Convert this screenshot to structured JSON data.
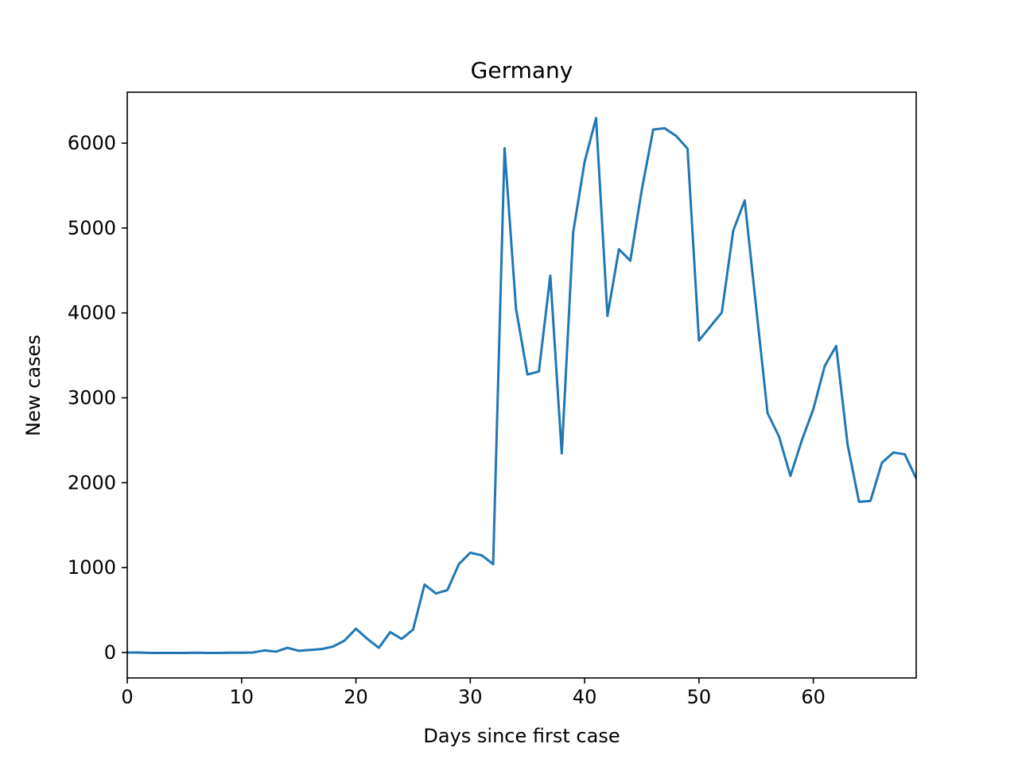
{
  "chart_data": {
    "type": "line",
    "title": "Germany",
    "xlabel": "Days since first case",
    "ylabel": "New cases",
    "xlim": [
      0,
      69
    ],
    "ylim": [
      -300,
      6600
    ],
    "xticks": [
      0,
      10,
      20,
      30,
      40,
      50,
      60
    ],
    "yticks": [
      0,
      1000,
      2000,
      3000,
      4000,
      5000,
      6000
    ],
    "grid": false,
    "line_color": "#1f77b4",
    "series": [
      {
        "x": [
          0,
          1,
          2,
          3,
          4,
          5,
          6,
          7,
          8,
          9,
          10,
          11,
          12,
          13,
          14,
          15,
          16,
          17,
          18,
          19,
          20,
          21,
          22,
          23,
          24,
          25,
          26,
          27,
          28,
          29,
          30,
          31,
          32,
          33,
          34,
          35,
          36,
          37,
          38,
          39,
          40,
          41,
          42,
          43,
          44,
          45,
          46,
          47,
          48,
          49,
          50,
          51,
          52,
          53,
          54,
          55,
          56,
          57,
          58,
          59,
          60,
          61,
          62,
          63,
          64,
          65,
          66,
          67,
          68,
          69
        ],
        "values": [
          0,
          0,
          -5,
          -5,
          -5,
          -5,
          -3,
          -5,
          -5,
          -3,
          -3,
          0,
          25,
          10,
          55,
          20,
          30,
          40,
          70,
          140,
          280,
          160,
          55,
          240,
          160,
          270,
          800,
          695,
          735,
          1040,
          1175,
          1145,
          1040,
          5940,
          4050,
          3275,
          3310,
          4440,
          2345,
          4950,
          5780,
          6295,
          3965,
          4750,
          4615,
          5450,
          6160,
          6175,
          6085,
          5935,
          3675,
          3840,
          4005,
          4970,
          5325,
          4070,
          2820,
          2545,
          2080,
          2500,
          2865,
          3375,
          3610,
          2450,
          1775,
          1785,
          2235,
          2355,
          2335,
          2050
        ]
      }
    ]
  }
}
